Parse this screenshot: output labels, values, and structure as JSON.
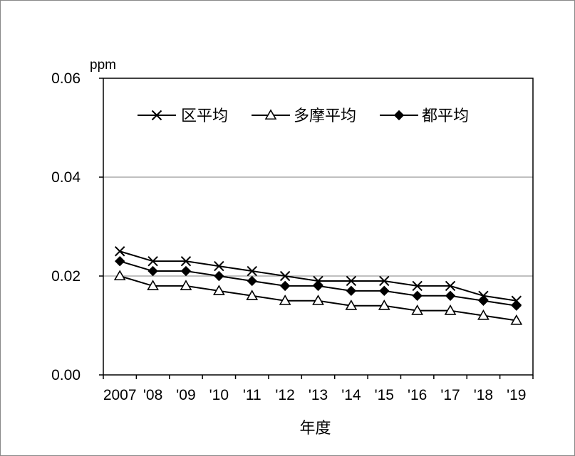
{
  "chart_data": {
    "type": "line",
    "title": "",
    "unit_label": "ppm",
    "xlabel": "年度",
    "ylabel": "",
    "categories": [
      "2007",
      "'08",
      "'09",
      "'10",
      "'11",
      "'12",
      "'13",
      "'14",
      "'15",
      "'16",
      "'17",
      "'18",
      "'19"
    ],
    "ylim": [
      0,
      0.06
    ],
    "yticks": [
      "0.00",
      "0.02",
      "0.04",
      "0.06"
    ],
    "ytick_values": [
      0,
      0.02,
      0.04,
      0.06
    ],
    "grid": true,
    "legend_position": "top",
    "series": [
      {
        "name": "区平均",
        "marker": "x-cross",
        "values": [
          0.025,
          0.023,
          0.023,
          0.022,
          0.021,
          0.02,
          0.019,
          0.019,
          0.019,
          0.018,
          0.018,
          0.016,
          0.015
        ]
      },
      {
        "name": "多摩平均",
        "marker": "open-triangle",
        "values": [
          0.02,
          0.018,
          0.018,
          0.017,
          0.016,
          0.015,
          0.015,
          0.014,
          0.014,
          0.013,
          0.013,
          0.012,
          0.011
        ]
      },
      {
        "name": "都平均",
        "marker": "filled-diamond",
        "values": [
          0.023,
          0.021,
          0.021,
          0.02,
          0.019,
          0.018,
          0.018,
          0.017,
          0.017,
          0.016,
          0.016,
          0.015,
          0.014
        ]
      }
    ],
    "colors": {
      "line": "#000000",
      "grid": "#808080"
    }
  }
}
